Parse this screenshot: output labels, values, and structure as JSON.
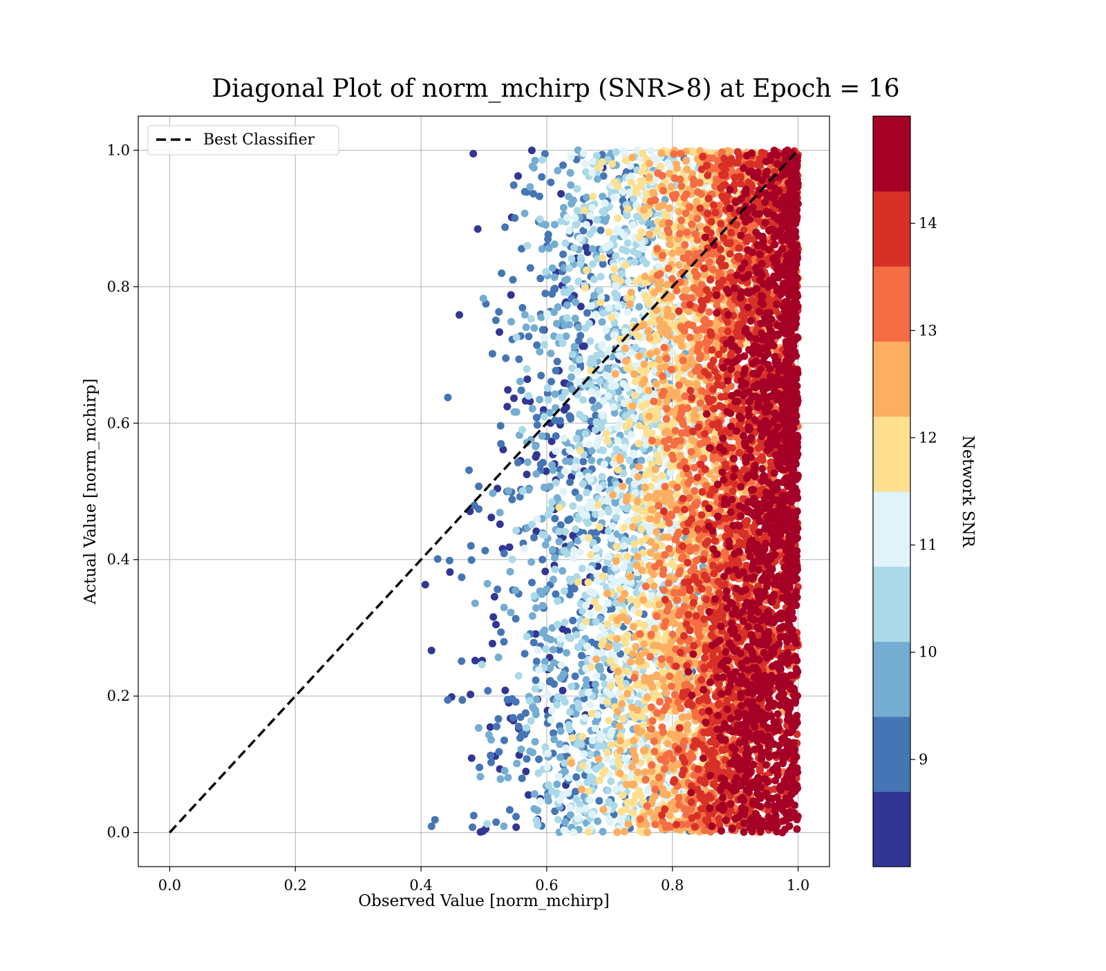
{
  "chart_data": {
    "type": "scatter",
    "title": "Diagonal Plot of norm_mchirp (SNR>8) at Epoch = 16",
    "xlabel": "Observed Value [norm_mchirp]",
    "ylabel": "Actual Value [norm_mchirp]",
    "xlim": [
      -0.05,
      1.05
    ],
    "ylim": [
      -0.05,
      1.05
    ],
    "x_ticks": [
      "0.0",
      "0.2",
      "0.4",
      "0.6",
      "0.8",
      "1.0"
    ],
    "y_ticks": [
      "0.0",
      "0.2",
      "0.4",
      "0.6",
      "0.8",
      "1.0"
    ],
    "grid": true,
    "legend": {
      "placement": "top-left",
      "entries": [
        "Best Classifier"
      ]
    },
    "reference_line": {
      "name": "Best Classifier",
      "x": [
        0.0,
        1.0
      ],
      "y": [
        0.0,
        1.0
      ],
      "style": "dashed",
      "color": "#000000"
    },
    "colorbar": {
      "label": "Network SNR",
      "range": [
        8.0,
        15.0
      ],
      "ticks": [
        "9",
        "10",
        "11",
        "12",
        "13",
        "14"
      ],
      "tick_values": [
        9,
        10,
        11,
        12,
        13,
        14
      ],
      "colors": [
        "#313695",
        "#4575b4",
        "#74add1",
        "#abd9e9",
        "#e0f3f8",
        "#fee090",
        "#fdae61",
        "#f46d43",
        "#d73027",
        "#a50026"
      ]
    },
    "scatter_description": {
      "point_count_approx": 30000,
      "x_range": [
        0.38,
        1.0
      ],
      "y_range": [
        0.0,
        1.0
      ],
      "trend": "high SNR (dark red) concentrated at observed 0.8-1.0; low SNR (blue) spread at observed 0.4-0.7"
    }
  }
}
